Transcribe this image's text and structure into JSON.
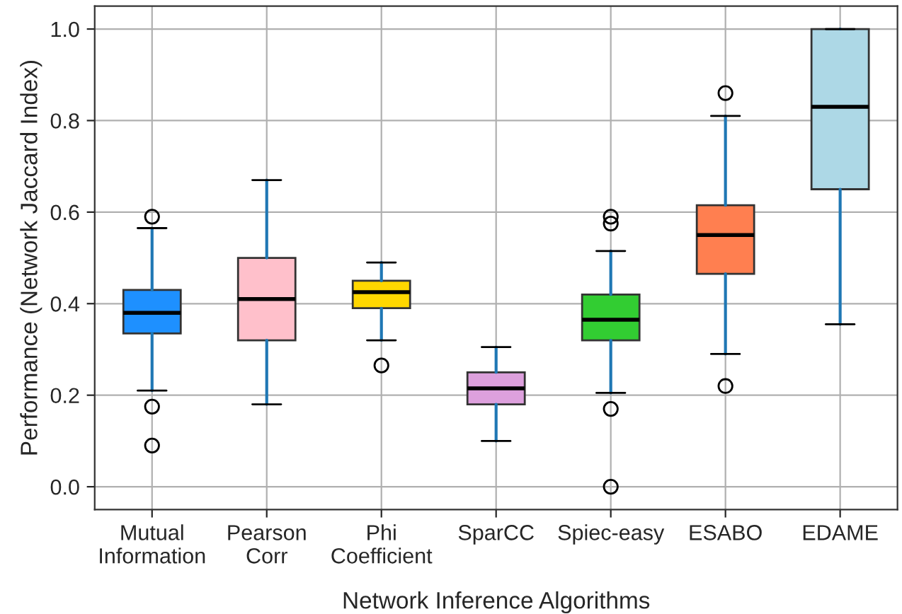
{
  "chart_data": {
    "type": "box",
    "xlabel": "Network Inference Algorithms",
    "ylabel": "Performance (Network Jaccard Index)",
    "categories": [
      "Mutual\nInformation",
      "Pearson\nCorr",
      "Phi\nCoefficient",
      "SparCC",
      "Spiec-easy",
      "ESABO",
      "EDAME"
    ],
    "colors": [
      "#1e90ff",
      "#ffc0cb",
      "#ffd700",
      "#dda0dd",
      "#32cd32",
      "#ff7f50",
      "#add8e6"
    ],
    "boxes": [
      {
        "low": 0.21,
        "q1": 0.335,
        "median": 0.38,
        "q3": 0.43,
        "high": 0.565,
        "outliers": [
          0.59,
          0.175,
          0.09
        ]
      },
      {
        "low": 0.18,
        "q1": 0.32,
        "median": 0.41,
        "q3": 0.5,
        "high": 0.67
      },
      {
        "low": 0.32,
        "q1": 0.39,
        "median": 0.425,
        "q3": 0.45,
        "high": 0.49,
        "outliers": [
          0.265
        ]
      },
      {
        "low": 0.1,
        "q1": 0.18,
        "median": 0.215,
        "q3": 0.25,
        "high": 0.305
      },
      {
        "low": 0.205,
        "q1": 0.32,
        "median": 0.365,
        "q3": 0.42,
        "high": 0.515,
        "outliers": [
          0.59,
          0.575,
          0.17,
          0.0
        ]
      },
      {
        "low": 0.29,
        "q1": 0.465,
        "median": 0.55,
        "q3": 0.615,
        "high": 0.81,
        "outliers": [
          0.86,
          0.22
        ]
      },
      {
        "low": 0.355,
        "q1": 0.65,
        "median": 0.83,
        "q3": 1.0,
        "high": 1.0
      }
    ],
    "ylim": [
      -0.05,
      1.05
    ],
    "yticks": [
      {
        "value": 0,
        "label": "0.0"
      },
      0.2,
      0.4,
      0.6,
      0.8,
      {
        "value": 1,
        "label": "1.0"
      }
    ],
    "grid": true
  }
}
